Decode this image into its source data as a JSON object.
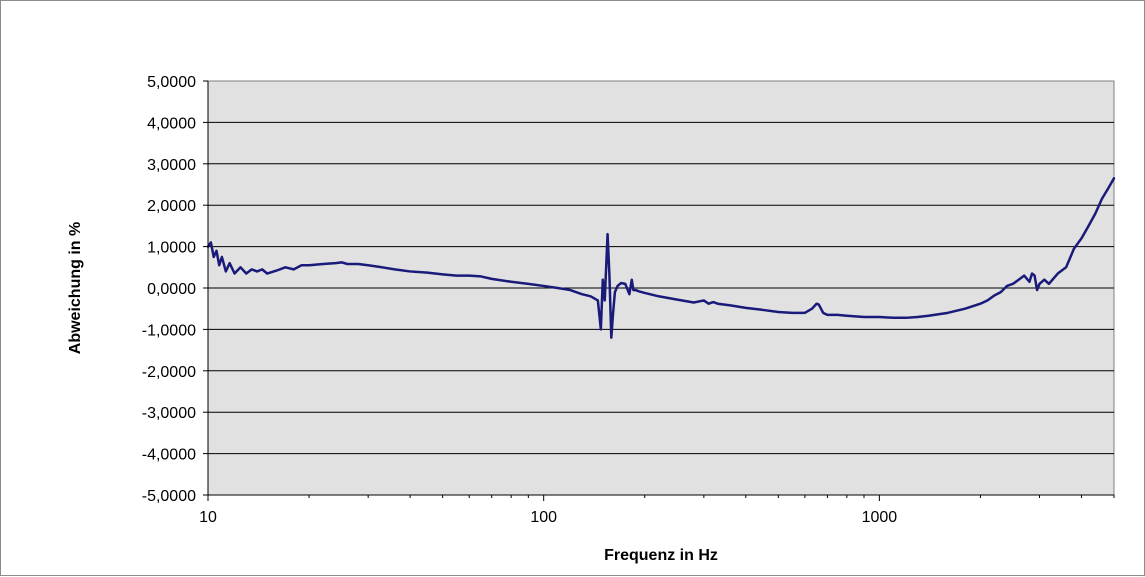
{
  "chart_data": {
    "type": "line",
    "title": "",
    "xlabel": "Frequenz in Hz",
    "ylabel": "Abweichung in %",
    "x_scale": "log",
    "xlim": [
      10,
      5000
    ],
    "ylim": [
      -5,
      5
    ],
    "grid": "horizontal",
    "legend": "none",
    "x_tick_values": [
      10,
      100,
      1000
    ],
    "x_tick_labels": [
      "10",
      "100",
      "1000"
    ],
    "y_tick_values": [
      5,
      4,
      3,
      2,
      1,
      0,
      -1,
      -2,
      -3,
      -4,
      -5
    ],
    "y_tick_labels": [
      "5,0000",
      "4,0000",
      "3,0000",
      "2,0000",
      "1,0000",
      "0,0000",
      "-1,0000",
      "-2,0000",
      "-3,0000",
      "-4,0000",
      "-5,0000"
    ],
    "colors": {
      "plot_background": "#e1e1e1",
      "line": "#1a1a7a",
      "grid": "#000000",
      "frame": "#8c8c8c"
    },
    "series": [
      {
        "x": [
          10,
          10.2,
          10.4,
          10.6,
          10.8,
          11,
          11.3,
          11.6,
          12,
          12.5,
          13,
          13.5,
          14,
          14.5,
          15,
          16,
          17,
          18,
          19,
          20,
          22,
          24,
          25,
          26,
          28,
          30,
          33,
          36,
          40,
          45,
          50,
          55,
          60,
          65,
          70,
          80,
          90,
          100,
          110,
          120,
          130,
          138,
          145,
          148,
          150,
          152,
          155,
          157,
          159,
          161,
          163,
          166,
          170,
          175,
          180,
          183,
          185,
          188,
          192,
          200,
          220,
          250,
          280,
          300,
          310,
          320,
          330,
          360,
          400,
          450,
          500,
          550,
          600,
          630,
          650,
          660,
          680,
          700,
          750,
          800,
          900,
          1000,
          1100,
          1200,
          1300,
          1400,
          1600,
          1800,
          2000,
          2100,
          2200,
          2300,
          2400,
          2500,
          2600,
          2700,
          2800,
          2850,
          2900,
          2950,
          3000,
          3100,
          3200,
          3400,
          3600,
          3800,
          4000,
          4200,
          4400,
          4600,
          4800,
          5000
        ],
        "y": [
          1.0,
          1.1,
          0.75,
          0.9,
          0.55,
          0.75,
          0.4,
          0.6,
          0.35,
          0.5,
          0.35,
          0.45,
          0.4,
          0.45,
          0.35,
          0.42,
          0.5,
          0.45,
          0.55,
          0.55,
          0.58,
          0.6,
          0.62,
          0.58,
          0.58,
          0.55,
          0.5,
          0.45,
          0.4,
          0.37,
          0.33,
          0.3,
          0.3,
          0.28,
          0.22,
          0.15,
          0.1,
          0.05,
          0.0,
          -0.05,
          -0.15,
          -0.2,
          -0.3,
          -1.0,
          0.2,
          -0.3,
          1.3,
          0.3,
          -1.2,
          -0.6,
          -0.1,
          0.05,
          0.12,
          0.1,
          -0.15,
          0.2,
          -0.05,
          -0.05,
          -0.08,
          -0.12,
          -0.2,
          -0.28,
          -0.35,
          -0.3,
          -0.38,
          -0.34,
          -0.38,
          -0.42,
          -0.48,
          -0.53,
          -0.58,
          -0.6,
          -0.6,
          -0.5,
          -0.38,
          -0.4,
          -0.6,
          -0.65,
          -0.65,
          -0.67,
          -0.7,
          -0.7,
          -0.72,
          -0.72,
          -0.7,
          -0.67,
          -0.6,
          -0.5,
          -0.38,
          -0.3,
          -0.18,
          -0.1,
          0.05,
          0.1,
          0.2,
          0.3,
          0.15,
          0.35,
          0.3,
          -0.05,
          0.1,
          0.2,
          0.1,
          0.35,
          0.5,
          0.95,
          1.2,
          1.5,
          1.8,
          2.15,
          2.4,
          2.65
        ]
      }
    ]
  }
}
